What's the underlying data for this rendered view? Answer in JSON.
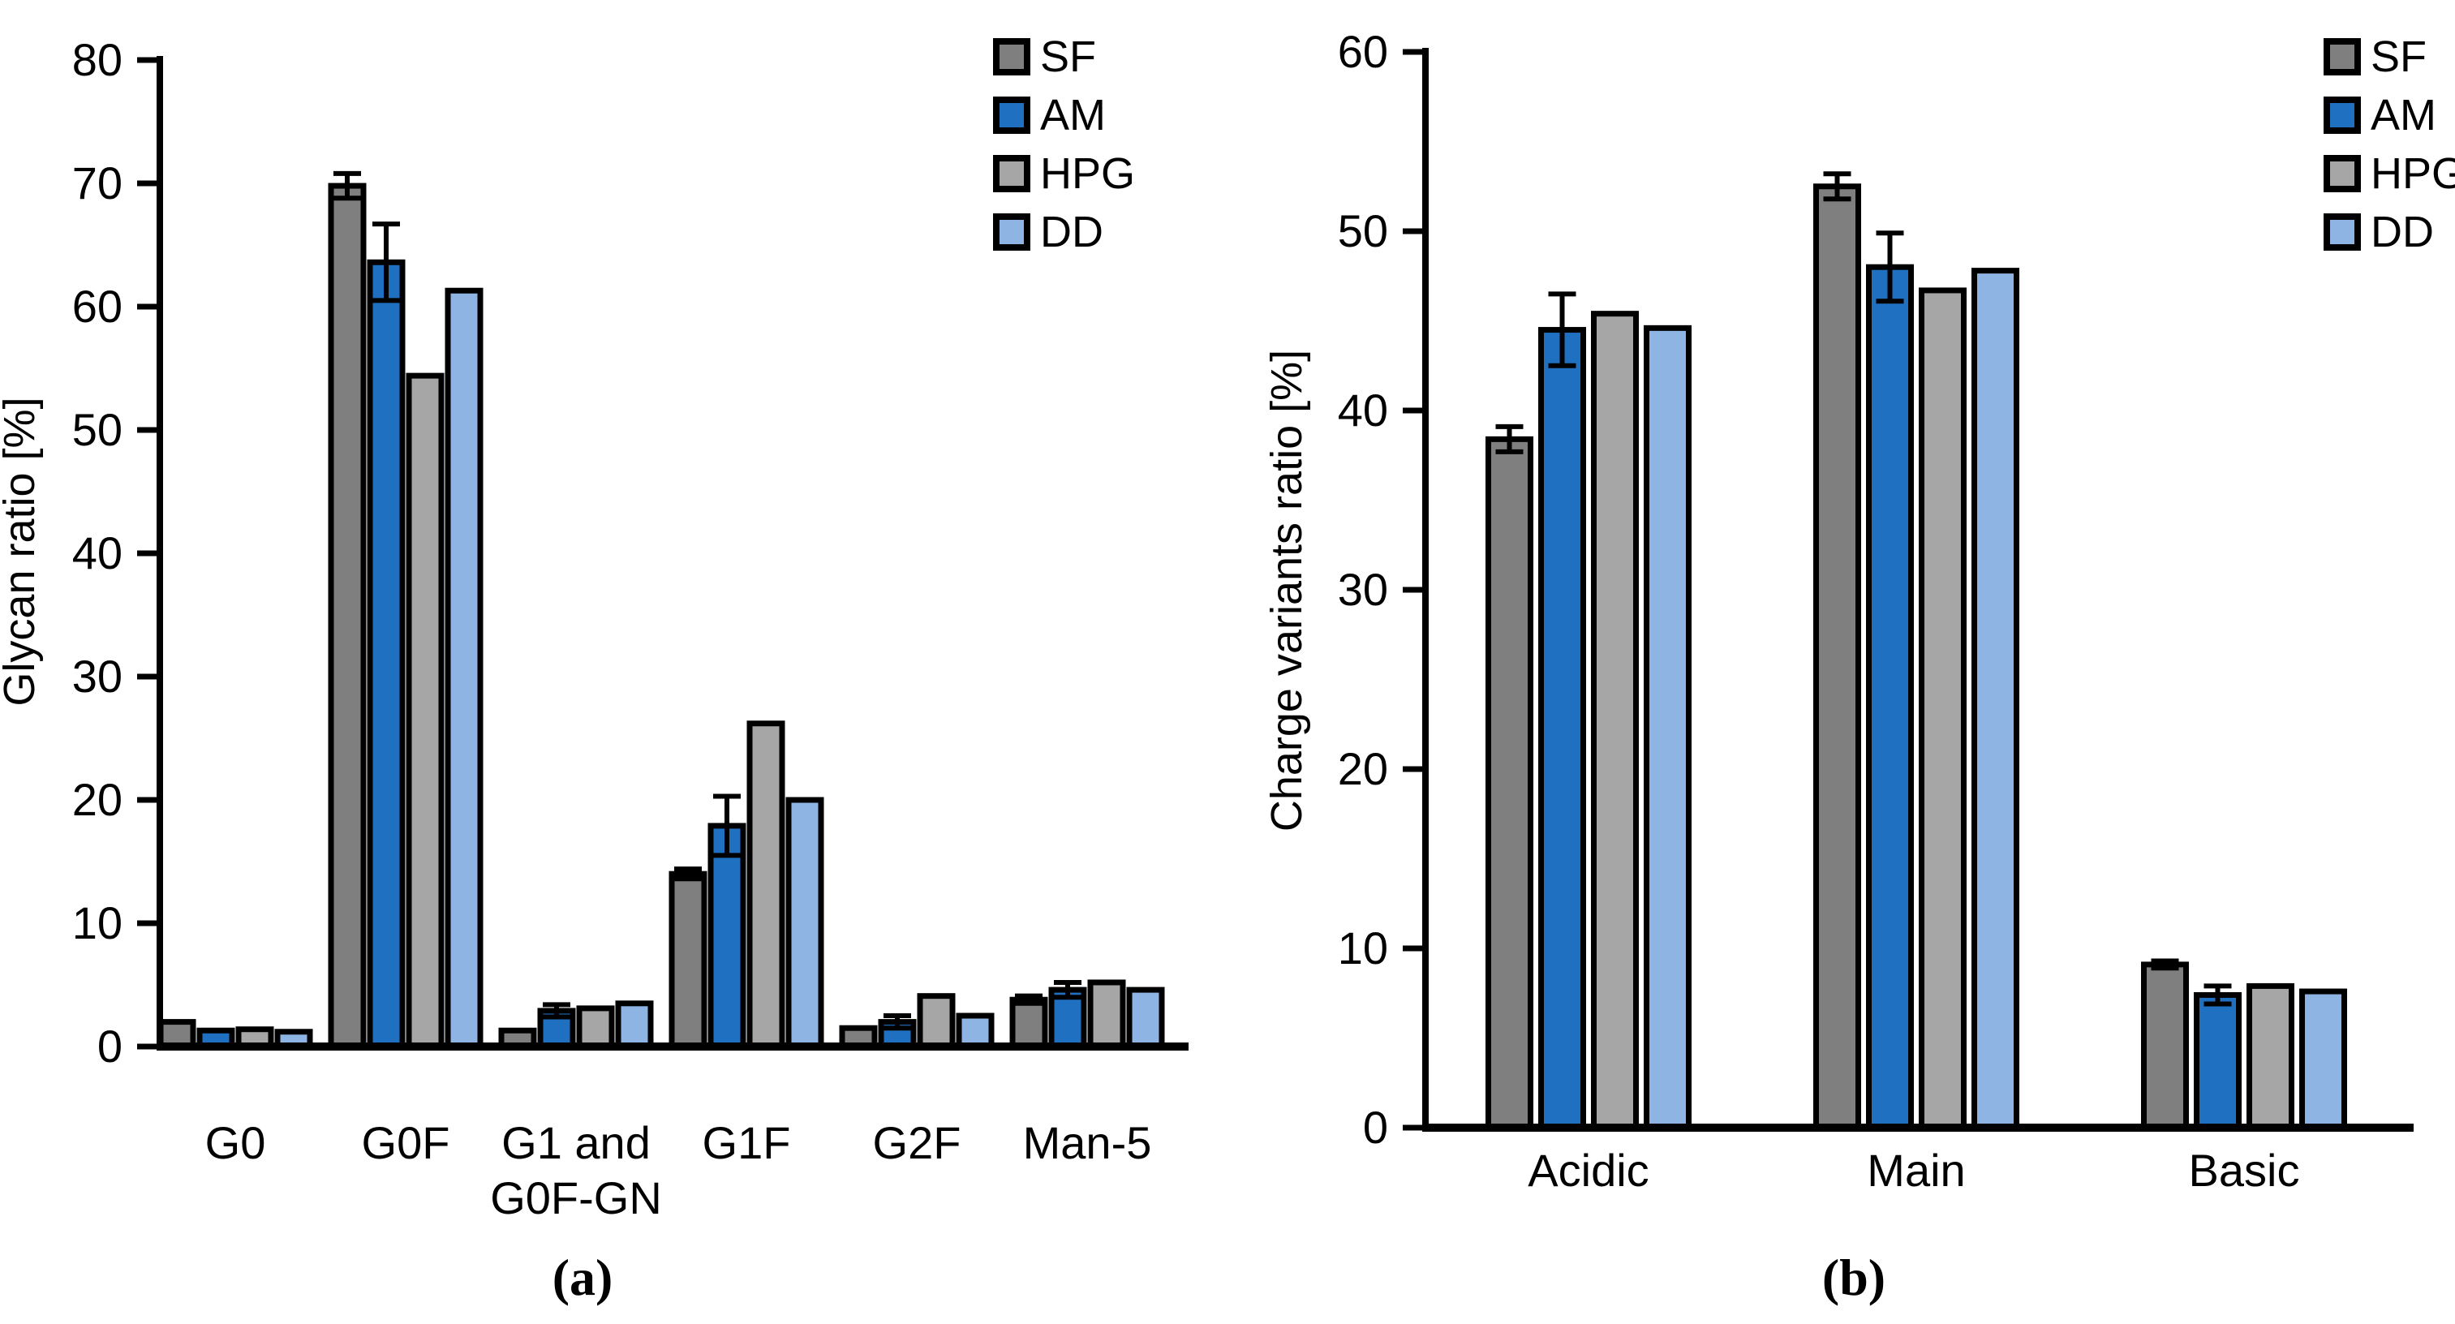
{
  "figure": {
    "caption_a": "(a)",
    "caption_b": "(b)"
  },
  "colors": {
    "SF": "#7f7f7f",
    "AM": "#1f70c1",
    "HPG": "#a6a6a6",
    "DD": "#8db4e2",
    "bar_border": "#000000",
    "axis": "#000000",
    "text": "#000000"
  },
  "chart_data": [
    {
      "type": "bar",
      "panel": "a",
      "ylabel": "Glycan ratio [%]",
      "ylim": [
        0,
        80
      ],
      "ytick_step": 10,
      "ytick_labels": [
        "0",
        "10",
        "20",
        "30",
        "40",
        "50",
        "60",
        "70",
        "80"
      ],
      "grid": false,
      "legend_position": "top-right",
      "categories": [
        "G0",
        "G0F",
        "G1 and\nG0F-GN",
        "G1F",
        "G2F",
        "Man-5"
      ],
      "series": [
        {
          "name": "SF",
          "color": "#7f7f7f",
          "values": [
            2.0,
            69.8,
            1.3,
            14.0,
            1.5,
            3.8
          ],
          "errors": [
            0,
            1.0,
            0,
            0.4,
            0,
            0.3
          ]
        },
        {
          "name": "AM",
          "color": "#1f70c1",
          "values": [
            1.3,
            63.6,
            2.9,
            17.9,
            2.0,
            4.6
          ],
          "errors": [
            0,
            3.1,
            0.5,
            2.4,
            0.5,
            0.6
          ]
        },
        {
          "name": "HPG",
          "color": "#a6a6a6",
          "values": [
            1.4,
            54.4,
            3.1,
            26.2,
            4.1,
            5.2
          ],
          "errors": [
            0,
            0,
            0,
            0,
            0,
            0
          ]
        },
        {
          "name": "DD",
          "color": "#8db4e2",
          "values": [
            1.2,
            61.3,
            3.5,
            20.0,
            2.5,
            4.6
          ],
          "errors": [
            0,
            0,
            0,
            0,
            0,
            0
          ]
        }
      ]
    },
    {
      "type": "bar",
      "panel": "b",
      "ylabel": "Charge variants ratio [%]",
      "ylim": [
        0,
        60
      ],
      "ytick_step": 10,
      "ytick_labels": [
        "0",
        "10",
        "20",
        "30",
        "40",
        "50",
        "60"
      ],
      "grid": false,
      "legend_position": "top-right",
      "categories": [
        "Acidic",
        "Main",
        "Basic"
      ],
      "series": [
        {
          "name": "SF",
          "color": "#7f7f7f",
          "values": [
            38.4,
            52.5,
            9.1
          ],
          "errors": [
            0.7,
            0.7,
            0.2
          ]
        },
        {
          "name": "AM",
          "color": "#1f70c1",
          "values": [
            44.5,
            48.0,
            7.4
          ],
          "errors": [
            2.0,
            1.9,
            0.5
          ]
        },
        {
          "name": "HPG",
          "color": "#a6a6a6",
          "values": [
            45.4,
            46.7,
            7.9
          ],
          "errors": [
            0,
            0,
            0
          ]
        },
        {
          "name": "DD",
          "color": "#8db4e2",
          "values": [
            44.6,
            47.8,
            7.6
          ],
          "errors": [
            0,
            0,
            0
          ]
        }
      ]
    }
  ]
}
